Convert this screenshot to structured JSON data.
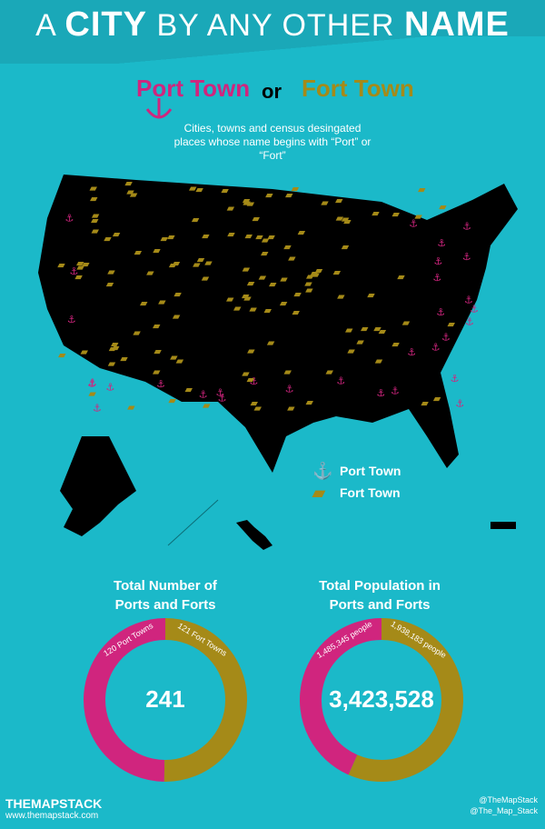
{
  "title": {
    "prefix_a": "A",
    "city": "CITY",
    "middle": "BY ANY OTHER",
    "name": "NAME"
  },
  "subtitle": {
    "port": "Port Town",
    "or": "or",
    "fort": "Fort Town"
  },
  "description": "Cities, towns and census desingated places whose name begins with “Port” or “Fort”",
  "legend": {
    "port": "Port Town",
    "fort": "Fort Town"
  },
  "colors": {
    "port": "#d0257e",
    "fort": "#a58a18",
    "background": "#1bb9c9",
    "map": "#000000"
  },
  "stats": {
    "count": {
      "title_line1": "Total Number of",
      "title_line2": "Ports and Forts",
      "total": "241",
      "port_label": "120 Port Towns",
      "fort_label": "121 Fort Towns"
    },
    "population": {
      "title_line1": "Total Population in",
      "title_line2": "Ports and Forts",
      "total": "3,423,528",
      "port_label": "1,485,345 people",
      "fort_label": "1,938,183 people"
    }
  },
  "chart_data": [
    {
      "type": "pie",
      "categories": [
        "Port Towns",
        "Fort Towns"
      ],
      "values": [
        120,
        121
      ],
      "total": 241
    },
    {
      "type": "pie",
      "categories": [
        "Port Towns",
        "Fort Towns"
      ],
      "values": [
        1485345,
        1938183
      ],
      "total": 3423528
    }
  ],
  "brand": {
    "name": "THEMAPSTACK",
    "url": "www.themapstack.com"
  },
  "social": {
    "line1": "@TheMapStack",
    "line2": "@The_Map_Stack"
  }
}
